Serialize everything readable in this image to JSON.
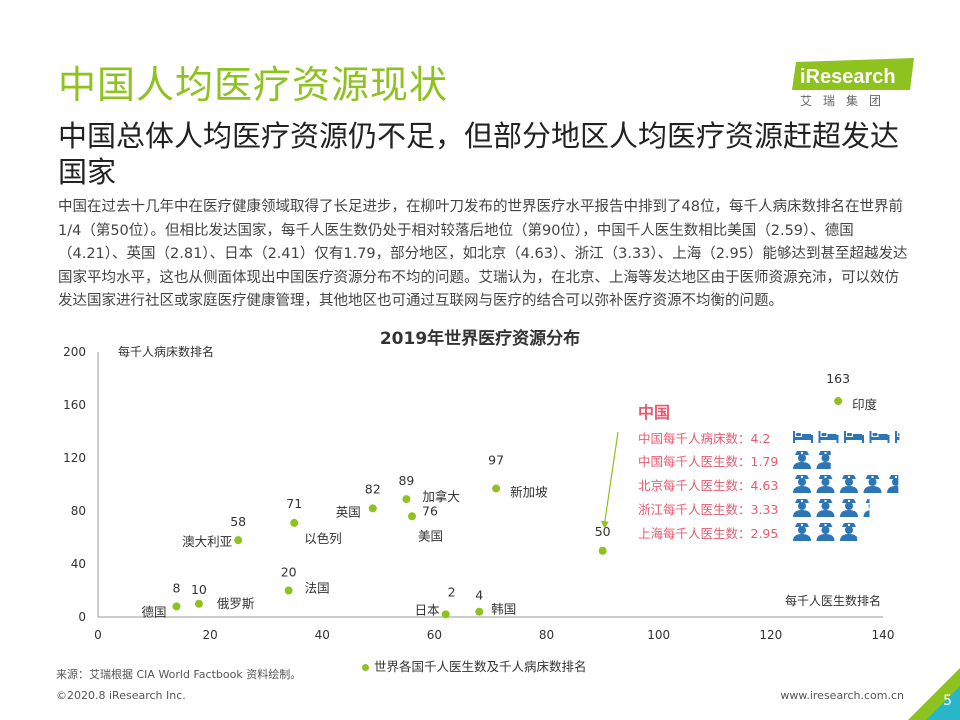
{
  "header": {
    "title": "中国人均医疗资源现状",
    "subtitle": "中国总体人均医疗资源仍不足，但部分地区人均医疗资源赶超发达国家",
    "body": "中国在过去十几年中在医疗健康领域取得了长足进步，在柳叶刀发布的世界医疗水平报告中排到了48位，每千人病床数排名在世界前1/4（第50位）。但相比发达国家，每千人医生数仍处于相对较落后地位（第90位），中国千人医生数相比美国（2.59）、德国（4.21）、英国（2.81）、日本（2.41）仅有1.79，部分地区，如北京（4.63）、浙江（3.33）、上海（2.95）能够达到甚至超越发达国家平均水平，这也从侧面体现出中国医疗资源分布不均的问题。艾瑞认为，在北京、上海等发达地区由于医师资源充沛，可以效仿发达国家进行社区或家庭医疗健康管理，其他地区也可通过互联网与医疗的结合可以弥补医疗资源不均衡的问题。"
  },
  "logo": {
    "brand": "iResearch",
    "cn": "艾瑞集团"
  },
  "colors": {
    "accent": "#8dc21f",
    "china": "#e85a71",
    "icon": "#2e75b6"
  },
  "chart_data": {
    "type": "scatter",
    "title": "2019年世界医疗资源分布",
    "xlabel": "每千人医生数排名",
    "ylabel": "每千人病床数排名",
    "xlim": [
      0,
      140
    ],
    "ylim": [
      0,
      200
    ],
    "xticks": [
      0,
      20,
      40,
      60,
      80,
      100,
      120,
      140
    ],
    "yticks": [
      0,
      40,
      80,
      120,
      160,
      200
    ],
    "legend": "世界各国千人医生数及千人病床数排名",
    "points": [
      {
        "name": "德国",
        "value_label": "8",
        "x": 14,
        "y": 8
      },
      {
        "name": "俄罗斯",
        "value_label": "10",
        "x": 18,
        "y": 10
      },
      {
        "name": "澳大利亚",
        "value_label": "58",
        "x": 25,
        "y": 58
      },
      {
        "name": "法国",
        "value_label": "20",
        "x": 34,
        "y": 20
      },
      {
        "name": "以色列",
        "value_label": "71",
        "x": 35,
        "y": 71
      },
      {
        "name": "英国",
        "value_label": "82",
        "x": 49,
        "y": 82
      },
      {
        "name": "加拿大",
        "value_label": "89",
        "x": 55,
        "y": 89
      },
      {
        "name": "美国",
        "value_label": "76",
        "x": 56,
        "y": 76
      },
      {
        "name": "日本",
        "value_label": "2",
        "x": 62,
        "y": 2
      },
      {
        "name": "韩国",
        "value_label": "4",
        "x": 68,
        "y": 4
      },
      {
        "name": "新加坡",
        "value_label": "97",
        "x": 71,
        "y": 97
      },
      {
        "name": "中国",
        "value_label": "50",
        "x": 90,
        "y": 50
      },
      {
        "name": "印度",
        "value_label": "163",
        "x": 132,
        "y": 163
      }
    ],
    "china_panel": {
      "title": "中国",
      "stats": [
        {
          "label": "中国每千人病床数：4.2",
          "kind": "bed",
          "value": 4.2
        },
        {
          "label": "中国每千人医生数：1.79",
          "kind": "doctor",
          "value": 1.79
        },
        {
          "label": "北京每千人医生数：4.63",
          "kind": "doctor",
          "value": 4.63
        },
        {
          "label": "浙江每千人医生数：3.33",
          "kind": "doctor",
          "value": 3.33
        },
        {
          "label": "上海每千人医生数：2.95",
          "kind": "doctor",
          "value": 2.95
        }
      ]
    }
  },
  "footer": {
    "source": "来源：艾瑞根据 CIA World Factbook 资料绘制。",
    "copyright": "©2020.8 iResearch Inc.",
    "site": "www.iresearch.com.cn",
    "page": "5"
  }
}
